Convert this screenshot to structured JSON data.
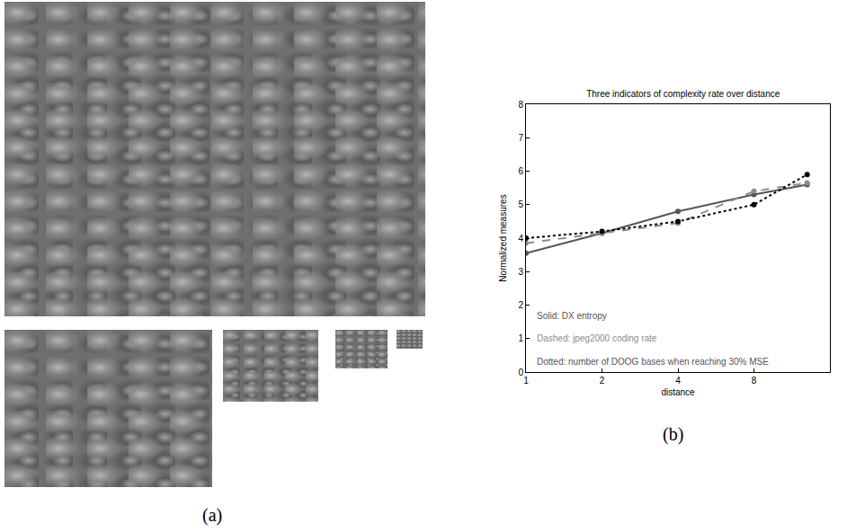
{
  "panel_labels": [
    "(a)",
    "(b)"
  ],
  "chart_data": {
    "type": "line",
    "title": "Three indicators of complexity rate over distance",
    "x_label": "distance",
    "y_label": "Normalized measures",
    "x": [
      1,
      2,
      4,
      8,
      13
    ],
    "log": "x",
    "xlim": [
      1,
      16
    ],
    "xticks": [
      1,
      2,
      4,
      8
    ],
    "ylim": [
      0,
      8
    ],
    "yticks": [
      0,
      1,
      2,
      3,
      4,
      5,
      6,
      7,
      8
    ],
    "grid": false,
    "series": [
      {
        "name": "DX entropy",
        "color": "#555555",
        "line_style": "solid",
        "marker": "circle",
        "values": [
          3.55,
          4.15,
          4.8,
          5.3,
          5.6
        ]
      },
      {
        "name": "jpeg2000 coding rate",
        "color": "#8c8c8c",
        "line_style": "dash",
        "marker": "circle",
        "values": [
          3.85,
          4.15,
          4.45,
          5.4,
          5.65
        ]
      },
      {
        "name": "number of DOOG bases when reaching 30% MSE",
        "color": "#000000",
        "line_style": "dot",
        "marker": "circle",
        "values": [
          4.0,
          4.2,
          4.5,
          5.0,
          5.9
        ]
      }
    ],
    "annotations": [
      "Solid: DX entropy",
      "Dashed: jpeg2000 coding rate",
      "Dotted: number of DOOG bases when reaching 30% MSE"
    ]
  }
}
